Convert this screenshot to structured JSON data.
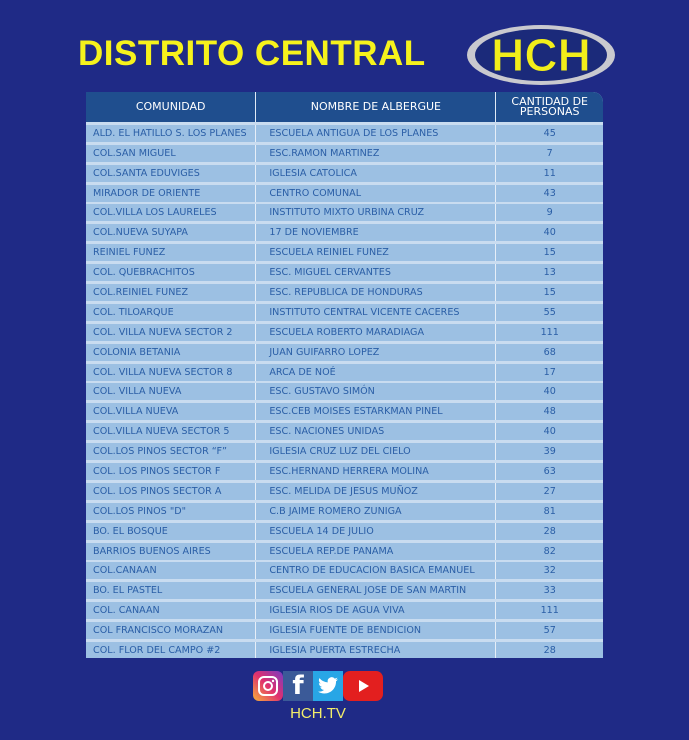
{
  "header": {
    "title": "DISTRITO CENTRAL",
    "logo_text": "HCH"
  },
  "table": {
    "columns": [
      "COMUNIDAD",
      "NOMBRE DE ALBERGUE",
      "CANTIDAD DE PERSONAS"
    ],
    "rows": [
      [
        "ALD. EL HATILLO S. LOS PLANES",
        "ESCUELA ANTIGUA DE LOS PLANES",
        "45"
      ],
      [
        "COL.SAN MIGUEL",
        "ESC.RAMON MARTINEZ",
        "7"
      ],
      [
        "COL.SANTA EDUVIGES",
        "IGLESIA CATOLICA",
        "11"
      ],
      [
        "MIRADOR DE ORIENTE",
        "CENTRO COMUNAL",
        "43"
      ],
      [
        "COL.VILLA LOS LAURELES",
        "INSTITUTO MIXTO URBINA CRUZ",
        "9"
      ],
      [
        "COL.NUEVA SUYAPA",
        "17 DE NOVIEMBRE",
        "40"
      ],
      [
        "REINIEL FUNEZ",
        "ESCUELA REINIEL FUNEZ",
        "15"
      ],
      [
        "COL. QUEBRACHITOS",
        "ESC. MIGUEL CERVANTES",
        "13"
      ],
      [
        "COL.REINIEL FUNEZ",
        "ESC. REPUBLICA DE HONDURAS",
        "15"
      ],
      [
        "COL. TILOARQUE",
        "INSTITUTO CENTRAL VICENTE CACERES",
        "55"
      ],
      [
        "COL. VILLA NUEVA  SECTOR 2",
        "ESCUELA ROBERTO MARADIAGA",
        "111"
      ],
      [
        "COLONIA BETANIA",
        "JUAN GUIFARRO LOPEZ",
        "68"
      ],
      [
        "COL. VILLA NUEVA SECTOR 8",
        "ARCA DE NOÉ",
        "17"
      ],
      [
        "COL. VILLA NUEVA",
        "ESC. GUSTAVO SIMÓN",
        "40"
      ],
      [
        "COL.VILLA NUEVA",
        "ESC.CEB MOISES ESTARKMAN PINEL",
        "48"
      ],
      [
        "COL.VILLA NUEVA SECTOR 5",
        "ESC. NACIONES UNIDAS",
        "40"
      ],
      [
        "COL.LOS PINOS SECTOR “F”",
        "IGLESIA CRUZ LUZ DEL CIELO",
        "39"
      ],
      [
        "COL. LOS PINOS SECTOR F",
        "ESC.HERNAND HERRERA MOLINA",
        "63"
      ],
      [
        "COL. LOS PINOS SECTOR A",
        "ESC. MELIDA DE JESUS MUÑOZ",
        "27"
      ],
      [
        "COL.LOS PINOS \"D\"",
        "C.B JAIME ROMERO ZUNIGA",
        "81"
      ],
      [
        "BO. EL BOSQUE",
        "ESCUELA 14 DE JULIO",
        "28"
      ],
      [
        "BARRIOS BUENOS AIRES",
        "ESCUELA REP.DE PANAMA",
        "82"
      ],
      [
        "COL.CANAAN",
        "CENTRO DE EDUCACION BASICA EMANUEL",
        "32"
      ],
      [
        "BO. EL PASTEL",
        "ESCUELA GENERAL JOSE DE SAN MARTIN",
        "33"
      ],
      [
        "COL. CANAAN",
        "IGLESIA RIOS DE AGUA VIVA",
        "111"
      ],
      [
        "COL FRANCISCO MORAZAN",
        "IGLESIA FUENTE DE BENDICION",
        "57"
      ],
      [
        "COL. FLOR DEL CAMPO #2",
        "IGLESIA PUERTA ESTRECHA",
        "28"
      ]
    ]
  },
  "footer": {
    "icons": [
      "instagram-icon",
      "facebook-icon",
      "twitter-icon",
      "youtube-icon"
    ],
    "site": "HCH.TV"
  },
  "colors": {
    "background": "#1f2a86",
    "title": "#f6f21c",
    "header_row": "#1f4e8e",
    "row": "#9cc0e3",
    "row_text": "#2a5ea6"
  }
}
